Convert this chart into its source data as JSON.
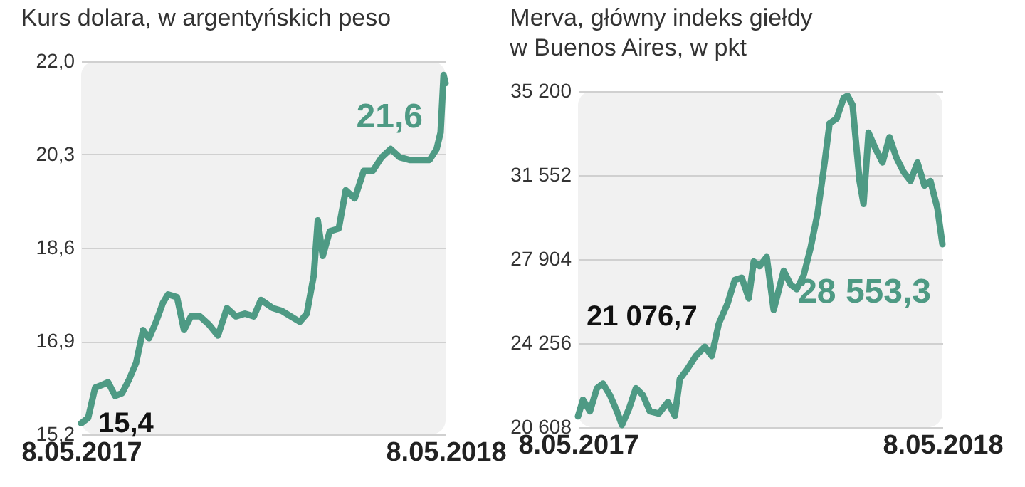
{
  "chart_data": [
    {
      "type": "line",
      "title": "Kurs dolara, w argentyńskich peso",
      "x": [
        "2017-05-08",
        "2017-05-15",
        "2017-05-22",
        "2017-05-29",
        "2017-06-04",
        "2017-06-11",
        "2017-06-18",
        "2017-06-25",
        "2017-07-02",
        "2017-07-09",
        "2017-07-15",
        "2017-07-22",
        "2017-07-29",
        "2017-08-03",
        "2017-08-12",
        "2017-08-19",
        "2017-08-26",
        "2017-09-04",
        "2017-09-13",
        "2017-09-22",
        "2017-10-01",
        "2017-10-10",
        "2017-10-19",
        "2017-10-28",
        "2017-11-04",
        "2017-11-16",
        "2017-11-25",
        "2017-12-04",
        "2017-12-13",
        "2017-12-20",
        "2017-12-27",
        "2017-12-31",
        "2018-01-05",
        "2018-01-12",
        "2018-01-21",
        "2018-01-28",
        "2018-02-06",
        "2018-02-15",
        "2018-02-24",
        "2018-03-05",
        "2018-03-14",
        "2018-03-23",
        "2018-04-02",
        "2018-04-11",
        "2018-04-22",
        "2018-04-29",
        "2018-05-03",
        "2018-05-06",
        "2018-05-08"
      ],
      "series": [
        {
          "color": "#4e9a84",
          "values": [
            15.4,
            15.5,
            16.05,
            16.1,
            16.15,
            15.9,
            15.95,
            16.2,
            16.5,
            17.1,
            16.95,
            17.25,
            17.6,
            17.75,
            17.7,
            17.1,
            17.35,
            17.35,
            17.2,
            17.0,
            17.5,
            17.35,
            17.4,
            17.35,
            17.65,
            17.5,
            17.45,
            17.35,
            17.25,
            17.4,
            18.1,
            19.1,
            18.45,
            18.9,
            18.95,
            19.65,
            19.5,
            20.0,
            20.0,
            20.25,
            20.4,
            20.25,
            20.2,
            20.2,
            20.2,
            20.4,
            20.7,
            21.75,
            21.6
          ]
        }
      ],
      "xlim": [
        "2017-05-08",
        "2018-05-08"
      ],
      "xticks": [
        {
          "value": "2017-05-08",
          "label": "8.05.2017"
        },
        {
          "value": "2018-05-08",
          "label": "8.05.2018"
        }
      ],
      "ylim": [
        15.2,
        22.0
      ],
      "yticks": [
        {
          "value": 15.2,
          "label": "15,2"
        },
        {
          "value": 16.9,
          "label": "16,9"
        },
        {
          "value": 18.6,
          "label": "18,6"
        },
        {
          "value": 20.3,
          "label": "20,3"
        },
        {
          "value": 22.0,
          "label": "22,0"
        }
      ],
      "grid": "y",
      "annotations": [
        {
          "text": "15,4",
          "x": "2017-05-08",
          "y": 15.4
        },
        {
          "text": "21,6",
          "x": "2018-05-08",
          "y": 21.6
        }
      ]
    },
    {
      "type": "line",
      "title": "Merva, główny indeks giełdy\nw Buenos Aires, w pkt",
      "x": [
        "2017-05-08",
        "2017-05-13",
        "2017-05-20",
        "2017-05-27",
        "2017-06-02",
        "2017-06-09",
        "2017-06-16",
        "2017-06-21",
        "2017-06-28",
        "2017-07-05",
        "2017-07-12",
        "2017-07-19",
        "2017-07-28",
        "2017-08-06",
        "2017-08-13",
        "2017-08-18",
        "2017-08-25",
        "2017-09-03",
        "2017-09-12",
        "2017-09-19",
        "2017-09-26",
        "2017-10-05",
        "2017-10-12",
        "2017-10-19",
        "2017-10-26",
        "2017-10-31",
        "2017-11-06",
        "2017-11-13",
        "2017-11-20",
        "2017-11-30",
        "2017-12-07",
        "2017-12-13",
        "2017-12-20",
        "2017-12-27",
        "2018-01-03",
        "2018-01-10",
        "2018-01-15",
        "2018-01-22",
        "2018-01-29",
        "2018-02-02",
        "2018-02-07",
        "2018-02-14",
        "2018-02-18",
        "2018-02-23",
        "2018-03-02",
        "2018-03-09",
        "2018-03-16",
        "2018-03-23",
        "2018-03-30",
        "2018-04-06",
        "2018-04-13",
        "2018-04-20",
        "2018-04-26",
        "2018-05-03",
        "2018-05-08"
      ],
      "series": [
        {
          "color": "#4e9a84",
          "values": [
            21076.7,
            21800,
            21300,
            22300,
            22500,
            22000,
            21300,
            20700,
            21400,
            22300,
            22000,
            21300,
            21200,
            21700,
            21100,
            22700,
            23100,
            23700,
            24100,
            23700,
            25100,
            26000,
            27000,
            27100,
            26200,
            27800,
            27600,
            28000,
            25700,
            27400,
            26800,
            26600,
            27200,
            28400,
            29900,
            32100,
            33800,
            34000,
            34900,
            35000,
            34600,
            31300,
            30300,
            33400,
            32700,
            32100,
            33200,
            32300,
            31700,
            31300,
            32100,
            31100,
            31300,
            30100,
            28553.3
          ]
        }
      ],
      "xlim": [
        "2017-05-08",
        "2018-05-08"
      ],
      "xticks": [
        {
          "value": "2017-05-08",
          "label": "8.05.2017"
        },
        {
          "value": "2018-05-08",
          "label": "8.05.2018"
        }
      ],
      "ylim": [
        20608,
        35200
      ],
      "yticks": [
        {
          "value": 20608,
          "label": "20 608"
        },
        {
          "value": 24256,
          "label": "24 256"
        },
        {
          "value": 27904,
          "label": "27 904"
        },
        {
          "value": 31552,
          "label": "31 552"
        },
        {
          "value": 35200,
          "label": "35 200"
        }
      ],
      "grid": "y",
      "annotations": [
        {
          "text": "21 076,7",
          "x": "2017-05-08",
          "y": 21076.7
        },
        {
          "text": "28 553,3",
          "x": "2018-05-08",
          "y": 28553.3
        }
      ]
    }
  ]
}
